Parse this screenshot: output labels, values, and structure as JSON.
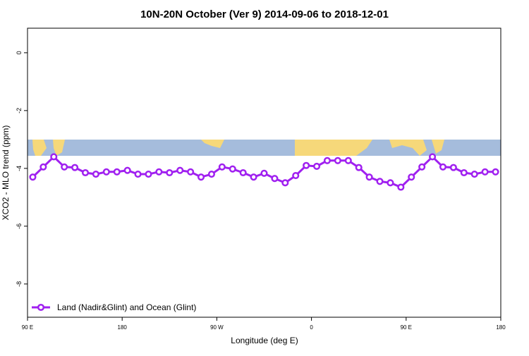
{
  "chart_data": {
    "type": "line",
    "title": "10N-20N October (Ver 9)   2014-09-06 to 2018-12-01",
    "x_label": "Longitude (deg E)",
    "y_label": "XCO2 - MLO trend (ppm)",
    "x": [
      95,
      105,
      115,
      125,
      135,
      145,
      155,
      165,
      175,
      185,
      195,
      205,
      215,
      225,
      235,
      245,
      255,
      265,
      275,
      285,
      295,
      305,
      315,
      325,
      335,
      345,
      355,
      365,
      375,
      385,
      395,
      405,
      415,
      425,
      435,
      445,
      455,
      465,
      475,
      485,
      495,
      505,
      515,
      525,
      535
    ],
    "series": [
      {
        "name": "Land (Nadir&Glint) and Ocean (Glint)",
        "color": "#a020f0",
        "values": [
          -4.3,
          -3.95,
          -3.6,
          -3.95,
          -3.97,
          -4.15,
          -4.2,
          -4.12,
          -4.12,
          -4.07,
          -4.2,
          -4.2,
          -4.12,
          -4.15,
          -4.07,
          -4.12,
          -4.3,
          -4.2,
          -3.95,
          -4.02,
          -4.15,
          -4.3,
          -4.17,
          -4.35,
          -4.5,
          -4.25,
          -3.9,
          -3.93,
          -3.73,
          -3.73,
          -3.73,
          -3.97,
          -4.3,
          -4.45,
          -4.5,
          -4.65,
          -4.3,
          -3.95,
          -3.6,
          -3.95,
          -3.97,
          -4.15,
          -4.2,
          -4.12,
          -4.12
        ]
      }
    ],
    "xlim": [
      90,
      540
    ],
    "xticks": [
      {
        "value": 90,
        "label": "90 E"
      },
      180,
      {
        "value": 270,
        "label": "90 W"
      },
      {
        "value": 360,
        "label": "0"
      },
      {
        "value": 450,
        "label": "90 E"
      },
      {
        "value": 540,
        "label": "180"
      }
    ],
    "ylim": [
      -9.15,
      0.85
    ],
    "yticks": [
      0,
      -2,
      -4,
      -6,
      -8
    ],
    "legend": "bottom-left"
  }
}
